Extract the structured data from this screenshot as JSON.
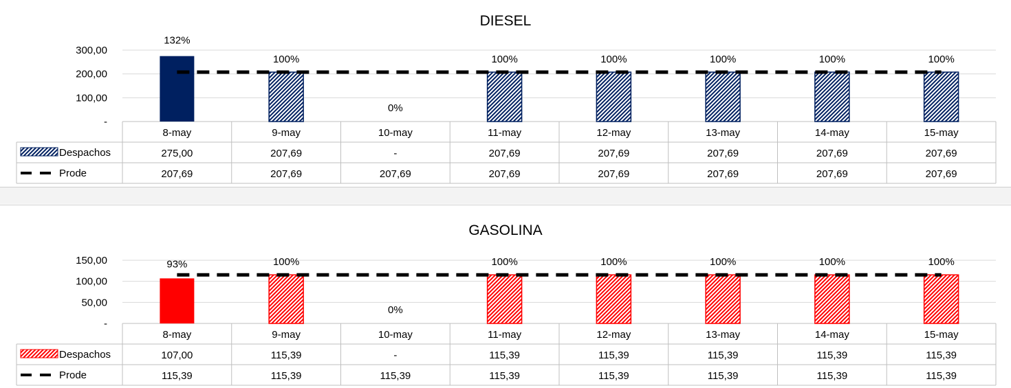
{
  "colors": {
    "diesel_accent": "#002060",
    "gasolina_accent": "#ff0000",
    "prode_line": "#000000",
    "gridline": "#d9d9d9"
  },
  "chart_data": [
    {
      "type": "bar",
      "title": "DIESEL",
      "categories": [
        "8-may",
        "9-may",
        "10-may",
        "11-may",
        "12-may",
        "13-may",
        "14-may",
        "15-may"
      ],
      "ylim": [
        0,
        300
      ],
      "yticks": [
        0,
        100,
        200,
        300
      ],
      "ytick_labels": [
        "-",
        "100,00",
        "200,00",
        "300,00"
      ],
      "series": [
        {
          "name": "Despachos",
          "type": "bar",
          "values": [
            275.0,
            207.69,
            0,
            207.69,
            207.69,
            207.69,
            207.69,
            207.69
          ],
          "labels": [
            "275,00",
            "207,69",
            "-",
            "207,69",
            "207,69",
            "207,69",
            "207,69",
            "207,69"
          ]
        },
        {
          "name": "Prode",
          "type": "line",
          "style": "dashed",
          "values": [
            207.69,
            207.69,
            207.69,
            207.69,
            207.69,
            207.69,
            207.69,
            207.69
          ],
          "labels": [
            "207,69",
            "207,69",
            "207,69",
            "207,69",
            "207,69",
            "207,69",
            "207,69",
            "207,69"
          ]
        }
      ],
      "percent_labels": [
        "132%",
        "100%",
        "0%",
        "100%",
        "100%",
        "100%",
        "100%",
        "100%"
      ],
      "grid": true,
      "data_table": true
    },
    {
      "type": "bar",
      "title": "GASOLINA",
      "categories": [
        "8-may",
        "9-may",
        "10-may",
        "11-may",
        "12-may",
        "13-may",
        "14-may",
        "15-may"
      ],
      "ylim": [
        0,
        150
      ],
      "yticks": [
        0,
        50,
        100,
        150
      ],
      "ytick_labels": [
        "-",
        "50,00",
        "100,00",
        "150,00"
      ],
      "series": [
        {
          "name": "Despachos",
          "type": "bar",
          "values": [
            107.0,
            115.39,
            0,
            115.39,
            115.39,
            115.39,
            115.39,
            115.39
          ],
          "labels": [
            "107,00",
            "115,39",
            "-",
            "115,39",
            "115,39",
            "115,39",
            "115,39",
            "115,39"
          ]
        },
        {
          "name": "Prode",
          "type": "line",
          "style": "dashed",
          "values": [
            115.39,
            115.39,
            115.39,
            115.39,
            115.39,
            115.39,
            115.39,
            115.39
          ],
          "labels": [
            "115,39",
            "115,39",
            "115,39",
            "115,39",
            "115,39",
            "115,39",
            "115,39",
            "115,39"
          ]
        }
      ],
      "percent_labels": [
        "93%",
        "100%",
        "0%",
        "100%",
        "100%",
        "100%",
        "100%",
        "100%"
      ],
      "grid": true,
      "data_table": true
    }
  ]
}
